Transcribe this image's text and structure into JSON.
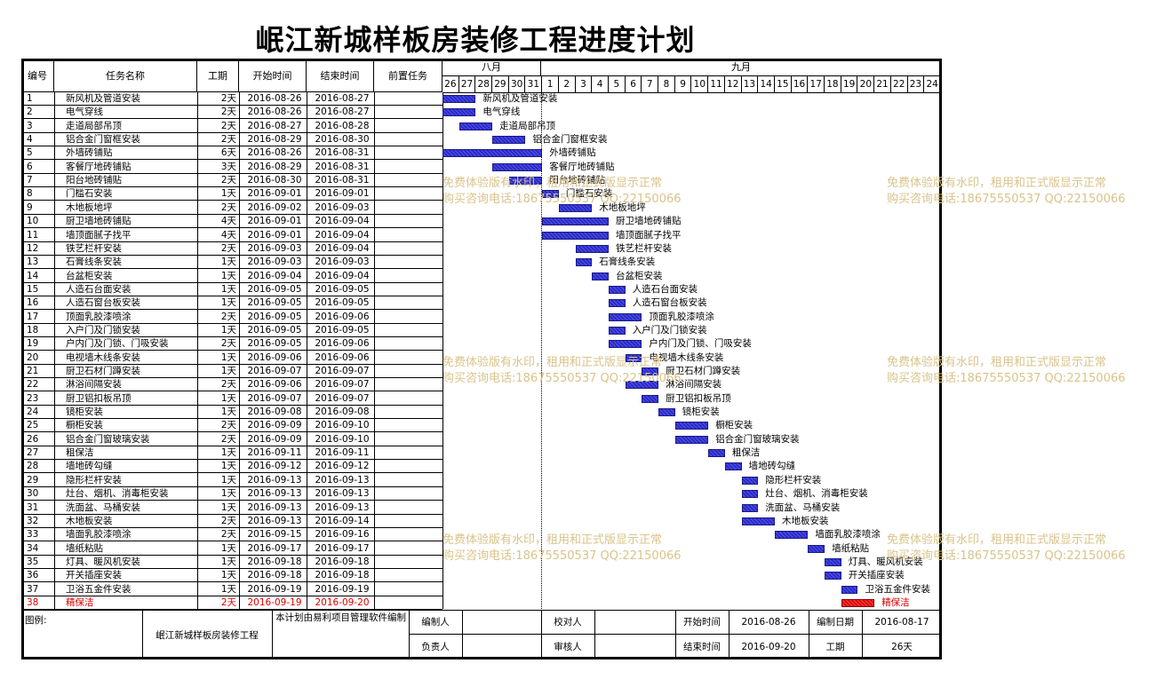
{
  "title": "岷江新城样板房装修工程进度计划",
  "headers": {
    "id": "编号",
    "name": "任务名称",
    "duration": "工期",
    "start": "开始时间",
    "end": "结束时间",
    "predecessor": "前置任务"
  },
  "months": [
    "八月",
    "九月"
  ],
  "days": [
    "26",
    "27",
    "28",
    "29",
    "30",
    "31",
    "1",
    "2",
    "3",
    "4",
    "5",
    "6",
    "7",
    "8",
    "9",
    "10",
    "11",
    "12",
    "13",
    "14",
    "15",
    "16",
    "17",
    "18",
    "19",
    "20",
    "21",
    "22",
    "23",
    "24"
  ],
  "tasks": [
    {
      "id": "1",
      "name": "新风机及管道安装",
      "duration": "2天",
      "start": "2016-08-26",
      "end": "2016-08-27",
      "s": 0,
      "d": 2
    },
    {
      "id": "2",
      "name": "电气穿线",
      "duration": "2天",
      "start": "2016-08-26",
      "end": "2016-08-27",
      "s": 0,
      "d": 2
    },
    {
      "id": "3",
      "name": "走道局部吊顶",
      "duration": "2天",
      "start": "2016-08-27",
      "end": "2016-08-28",
      "s": 1,
      "d": 2
    },
    {
      "id": "4",
      "name": "铝合金门窗框安装",
      "duration": "2天",
      "start": "2016-08-29",
      "end": "2016-08-30",
      "s": 3,
      "d": 2
    },
    {
      "id": "5",
      "name": "外墙砖铺贴",
      "duration": "6天",
      "start": "2016-08-26",
      "end": "2016-08-31",
      "s": 0,
      "d": 6
    },
    {
      "id": "6",
      "name": "客餐厅地砖铺贴",
      "duration": "3天",
      "start": "2016-08-29",
      "end": "2016-08-31",
      "s": 3,
      "d": 3
    },
    {
      "id": "7",
      "name": "阳台地砖铺贴",
      "duration": "2天",
      "start": "2016-08-30",
      "end": "2016-08-31",
      "s": 4,
      "d": 2
    },
    {
      "id": "8",
      "name": "门槛石安装",
      "duration": "1天",
      "start": "2016-09-01",
      "end": "2016-09-01",
      "s": 6,
      "d": 1
    },
    {
      "id": "9",
      "name": "木地板地坪",
      "duration": "2天",
      "start": "2016-09-02",
      "end": "2016-09-03",
      "s": 7,
      "d": 2
    },
    {
      "id": "10",
      "name": "厨卫墙地砖铺贴",
      "duration": "4天",
      "start": "2016-09-01",
      "end": "2016-09-04",
      "s": 6,
      "d": 4
    },
    {
      "id": "11",
      "name": "墙顶面腻子找平",
      "duration": "4天",
      "start": "2016-09-01",
      "end": "2016-09-04",
      "s": 6,
      "d": 4
    },
    {
      "id": "12",
      "name": "铁艺栏杆安装",
      "duration": "2天",
      "start": "2016-09-03",
      "end": "2016-09-04",
      "s": 8,
      "d": 2
    },
    {
      "id": "13",
      "name": "石膏线条安装",
      "duration": "1天",
      "start": "2016-09-03",
      "end": "2016-09-03",
      "s": 8,
      "d": 1
    },
    {
      "id": "14",
      "name": "台盆柜安装",
      "duration": "1天",
      "start": "2016-09-04",
      "end": "2016-09-04",
      "s": 9,
      "d": 1
    },
    {
      "id": "15",
      "name": "人造石台面安装",
      "duration": "1天",
      "start": "2016-09-05",
      "end": "2016-09-05",
      "s": 10,
      "d": 1
    },
    {
      "id": "16",
      "name": "人造石窗台板安装",
      "duration": "1天",
      "start": "2016-09-05",
      "end": "2016-09-05",
      "s": 10,
      "d": 1
    },
    {
      "id": "17",
      "name": "顶面乳胶漆喷涂",
      "duration": "2天",
      "start": "2016-09-05",
      "end": "2016-09-06",
      "s": 10,
      "d": 2
    },
    {
      "id": "18",
      "name": "入户门及门锁安装",
      "duration": "1天",
      "start": "2016-09-05",
      "end": "2016-09-05",
      "s": 10,
      "d": 1
    },
    {
      "id": "19",
      "name": "户内门及门锁、门吸安装",
      "duration": "2天",
      "start": "2016-09-05",
      "end": "2016-09-06",
      "s": 10,
      "d": 2
    },
    {
      "id": "20",
      "name": "电视墙木线条安装",
      "duration": "1天",
      "start": "2016-09-06",
      "end": "2016-09-06",
      "s": 11,
      "d": 1
    },
    {
      "id": "21",
      "name": "厨卫石材门蹲安装",
      "duration": "1天",
      "start": "2016-09-07",
      "end": "2016-09-07",
      "s": 12,
      "d": 1
    },
    {
      "id": "22",
      "name": "淋浴间隔安装",
      "duration": "2天",
      "start": "2016-09-06",
      "end": "2016-09-07",
      "s": 11,
      "d": 2
    },
    {
      "id": "23",
      "name": "厨卫铝扣板吊顶",
      "duration": "1天",
      "start": "2016-09-07",
      "end": "2016-09-07",
      "s": 12,
      "d": 1
    },
    {
      "id": "24",
      "name": "镜柜安装",
      "duration": "1天",
      "start": "2016-09-08",
      "end": "2016-09-08",
      "s": 13,
      "d": 1
    },
    {
      "id": "25",
      "name": "橱柜安装",
      "duration": "2天",
      "start": "2016-09-09",
      "end": "2016-09-10",
      "s": 14,
      "d": 2
    },
    {
      "id": "26",
      "name": "铝合金门窗玻璃安装",
      "duration": "2天",
      "start": "2016-09-09",
      "end": "2016-09-10",
      "s": 14,
      "d": 2
    },
    {
      "id": "27",
      "name": "粗保洁",
      "duration": "1天",
      "start": "2016-09-11",
      "end": "2016-09-11",
      "s": 16,
      "d": 1
    },
    {
      "id": "28",
      "name": "墙地砖勾缝",
      "duration": "1天",
      "start": "2016-09-12",
      "end": "2016-09-12",
      "s": 17,
      "d": 1
    },
    {
      "id": "29",
      "name": "隐形栏杆安装",
      "duration": "1天",
      "start": "2016-09-13",
      "end": "2016-09-13",
      "s": 18,
      "d": 1
    },
    {
      "id": "30",
      "name": "灶台、烟机、消毒柜安装",
      "duration": "1天",
      "start": "2016-09-13",
      "end": "2016-09-13",
      "s": 18,
      "d": 1
    },
    {
      "id": "31",
      "name": "洗面盆、马桶安装",
      "duration": "1天",
      "start": "2016-09-13",
      "end": "2016-09-13",
      "s": 18,
      "d": 1
    },
    {
      "id": "32",
      "name": "木地板安装",
      "duration": "2天",
      "start": "2016-09-13",
      "end": "2016-09-14",
      "s": 18,
      "d": 2
    },
    {
      "id": "33",
      "name": "墙面乳胶漆喷涂",
      "duration": "2天",
      "start": "2016-09-15",
      "end": "2016-09-16",
      "s": 20,
      "d": 2
    },
    {
      "id": "34",
      "name": "墙纸粘贴",
      "duration": "1天",
      "start": "2016-09-17",
      "end": "2016-09-17",
      "s": 22,
      "d": 1
    },
    {
      "id": "35",
      "name": "灯具、暖风机安装",
      "duration": "1天",
      "start": "2016-09-18",
      "end": "2016-09-18",
      "s": 23,
      "d": 1
    },
    {
      "id": "36",
      "name": "开关插座安装",
      "duration": "1天",
      "start": "2016-09-18",
      "end": "2016-09-18",
      "s": 23,
      "d": 1
    },
    {
      "id": "37",
      "name": "卫浴五金件安装",
      "duration": "1天",
      "start": "2016-09-19",
      "end": "2016-09-19",
      "s": 24,
      "d": 1
    },
    {
      "id": "38",
      "name": "精保洁",
      "duration": "2天",
      "start": "2016-09-19",
      "end": "2016-09-20",
      "s": 24,
      "d": 2,
      "critical": true
    }
  ],
  "footer": {
    "legend_label": "图例:",
    "project": "岷江新城样板房装修工程",
    "note": "本计划由易利项目管理软件编制",
    "compiler_label": "编制人",
    "reviewer_label": "校对人",
    "owner_label": "负责人",
    "auditor_label": "审核人",
    "start_label": "开始时间",
    "start_value": "2016-08-26",
    "end_label": "结束时间",
    "end_value": "2016-09-20",
    "date_label": "编制日期",
    "date_value": "2016-08-17",
    "duration_label": "工期",
    "duration_value": "26天"
  },
  "watermark": {
    "line1": "免费体验版有水印，租用和正式版显示正常",
    "line2": "购买咨询电话:18675550537 QQ:22150066"
  },
  "colors": {
    "bar": "#3030d0",
    "critical": "#e00000",
    "watermark": "#d9c38a"
  }
}
